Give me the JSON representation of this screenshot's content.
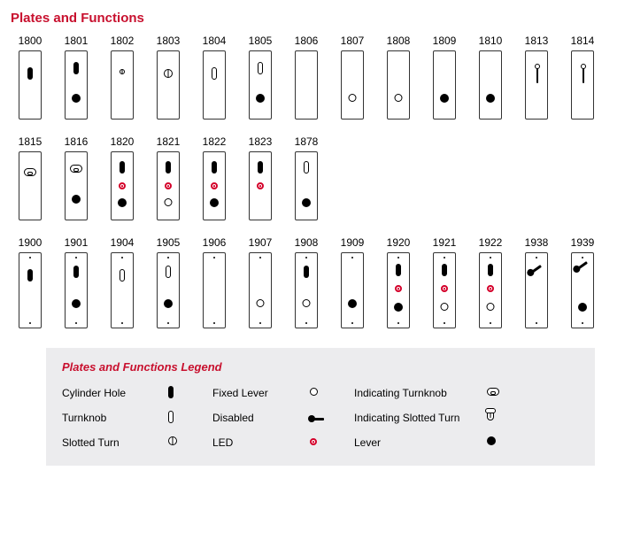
{
  "title": "Plates and Functions",
  "title_color": "#c8102e",
  "colors": {
    "text": "#000000",
    "border": "#333333",
    "led": "#d4002a",
    "legend_bg": "#ececee",
    "legend_title": "#c8102e"
  },
  "plate_size": {
    "w": 26,
    "h": 78,
    "h_tall": 86,
    "border_radius": 2
  },
  "element_types": {
    "cyl": "Cylinder Hole",
    "turnknob": "Turnknob",
    "slotted": "Slotted Turn",
    "fixedlever": "Fixed Lever",
    "disabled": "Disabled",
    "led": "LED",
    "ind_turnknob": "Indicating Turnknob",
    "ind_slotted": "Indicating Slotted Turn",
    "lever": "Lever"
  },
  "rows": [
    {
      "tall": false,
      "plates": [
        {
          "label": "1800",
          "els": [
            {
              "t": "cyl",
              "y": 18
            }
          ]
        },
        {
          "label": "1801",
          "els": [
            {
              "t": "cyl",
              "y": 12
            },
            {
              "t": "lever",
              "y": 48
            }
          ]
        },
        {
          "label": "1802",
          "els": [
            {
              "t": "slotted",
              "y": 20,
              "small": true
            }
          ]
        },
        {
          "label": "1803",
          "els": [
            {
              "t": "slotted",
              "y": 20
            }
          ]
        },
        {
          "label": "1804",
          "els": [
            {
              "t": "turnknob",
              "y": 18
            }
          ]
        },
        {
          "label": "1805",
          "els": [
            {
              "t": "turnknob",
              "y": 12
            },
            {
              "t": "lever",
              "y": 48
            }
          ]
        },
        {
          "label": "1806",
          "els": []
        },
        {
          "label": "1807",
          "els": [
            {
              "t": "fixedlever",
              "y": 48
            }
          ]
        },
        {
          "label": "1808",
          "els": [
            {
              "t": "fixedlever",
              "y": 48
            }
          ]
        },
        {
          "label": "1809",
          "els": [
            {
              "t": "lever",
              "y": 48
            }
          ]
        },
        {
          "label": "1810",
          "els": [
            {
              "t": "lever",
              "y": 48
            }
          ]
        },
        {
          "label": "1813",
          "els": [
            {
              "t": "ind_slotted",
              "y": 18
            }
          ]
        },
        {
          "label": "1814",
          "els": [
            {
              "t": "ind_slotted",
              "y": 18
            }
          ]
        }
      ]
    },
    {
      "tall": false,
      "plates": [
        {
          "label": "1815",
          "els": [
            {
              "t": "ind_turnknob",
              "y": 18
            }
          ]
        },
        {
          "label": "1816",
          "els": [
            {
              "t": "ind_turnknob",
              "y": 14
            },
            {
              "t": "lever",
              "y": 48
            }
          ]
        },
        {
          "label": "1820",
          "els": [
            {
              "t": "cyl",
              "y": 10
            },
            {
              "t": "led",
              "y": 34
            },
            {
              "t": "lever",
              "y": 52
            }
          ]
        },
        {
          "label": "1821",
          "els": [
            {
              "t": "cyl",
              "y": 10
            },
            {
              "t": "led",
              "y": 34
            },
            {
              "t": "fixedlever",
              "y": 52
            }
          ]
        },
        {
          "label": "1822",
          "els": [
            {
              "t": "cyl",
              "y": 10
            },
            {
              "t": "led",
              "y": 34
            },
            {
              "t": "lever",
              "y": 52
            }
          ]
        },
        {
          "label": "1823",
          "els": [
            {
              "t": "cyl",
              "y": 10
            },
            {
              "t": "led",
              "y": 34
            }
          ]
        },
        {
          "label": "1878",
          "els": [
            {
              "t": "turnknob",
              "y": 10
            },
            {
              "t": "lever",
              "y": 52
            }
          ]
        }
      ]
    },
    {
      "tall": true,
      "plates": [
        {
          "label": "1900",
          "els": [
            {
              "t": "dot",
              "y": 4
            },
            {
              "t": "cyl",
              "y": 18
            },
            {
              "t": "dot",
              "y": 78
            }
          ]
        },
        {
          "label": "1901",
          "els": [
            {
              "t": "dot",
              "y": 4
            },
            {
              "t": "cyl",
              "y": 14
            },
            {
              "t": "lever",
              "y": 52
            },
            {
              "t": "dot",
              "y": 78
            }
          ]
        },
        {
          "label": "1904",
          "els": [
            {
              "t": "dot",
              "y": 4
            },
            {
              "t": "turnknob",
              "y": 18
            },
            {
              "t": "dot",
              "y": 78
            }
          ]
        },
        {
          "label": "1905",
          "els": [
            {
              "t": "dot",
              "y": 4
            },
            {
              "t": "turnknob",
              "y": 14
            },
            {
              "t": "lever",
              "y": 52
            },
            {
              "t": "dot",
              "y": 78
            }
          ]
        },
        {
          "label": "1906",
          "els": [
            {
              "t": "dot",
              "y": 4
            },
            {
              "t": "dot",
              "y": 78
            }
          ]
        },
        {
          "label": "1907",
          "els": [
            {
              "t": "dot",
              "y": 4
            },
            {
              "t": "fixedlever",
              "y": 52
            },
            {
              "t": "dot",
              "y": 78
            }
          ]
        },
        {
          "label": "1908",
          "els": [
            {
              "t": "dot",
              "y": 4
            },
            {
              "t": "cyl",
              "y": 14
            },
            {
              "t": "fixedlever",
              "y": 52
            },
            {
              "t": "dot",
              "y": 78
            }
          ]
        },
        {
          "label": "1909",
          "els": [
            {
              "t": "dot",
              "y": 4
            },
            {
              "t": "lever",
              "y": 52
            },
            {
              "t": "dot",
              "y": 78
            }
          ]
        },
        {
          "label": "1920",
          "els": [
            {
              "t": "dot",
              "y": 4
            },
            {
              "t": "cyl",
              "y": 12
            },
            {
              "t": "led",
              "y": 36
            },
            {
              "t": "lever",
              "y": 56
            },
            {
              "t": "dot",
              "y": 78
            }
          ]
        },
        {
          "label": "1921",
          "els": [
            {
              "t": "dot",
              "y": 4
            },
            {
              "t": "cyl",
              "y": 12
            },
            {
              "t": "led",
              "y": 36
            },
            {
              "t": "fixedlever",
              "y": 56
            },
            {
              "t": "dot",
              "y": 78
            }
          ]
        },
        {
          "label": "1922",
          "els": [
            {
              "t": "dot",
              "y": 4
            },
            {
              "t": "cyl",
              "y": 12
            },
            {
              "t": "led",
              "y": 36
            },
            {
              "t": "fixedlever",
              "y": 56
            },
            {
              "t": "dot",
              "y": 78
            }
          ]
        },
        {
          "label": "1938",
          "els": [
            {
              "t": "dot",
              "y": 4
            },
            {
              "t": "disabled",
              "y": 22
            },
            {
              "t": "dot",
              "y": 78
            }
          ]
        },
        {
          "label": "1939",
          "els": [
            {
              "t": "dot",
              "y": 4
            },
            {
              "t": "disabled",
              "y": 18
            },
            {
              "t": "lever",
              "y": 56
            },
            {
              "t": "dot",
              "y": 78
            }
          ]
        }
      ]
    }
  ],
  "legend": {
    "title": "Plates and Functions Legend",
    "items": [
      {
        "label": "Cylinder Hole",
        "glyph": "cyl"
      },
      {
        "label": "Fixed Lever",
        "glyph": "fixedlever"
      },
      {
        "label": "Indicating Turnknob",
        "glyph": "ind_turnknob"
      },
      {
        "label": "Turnknob",
        "glyph": "turnknob"
      },
      {
        "label": "Disabled",
        "glyph": "disabled"
      },
      {
        "label": "Indicating Slotted Turn",
        "glyph": "ind_slotted"
      },
      {
        "label": "Slotted Turn",
        "glyph": "slotted"
      },
      {
        "label": "LED",
        "glyph": "led"
      },
      {
        "label": "Lever",
        "glyph": "lever"
      }
    ]
  }
}
